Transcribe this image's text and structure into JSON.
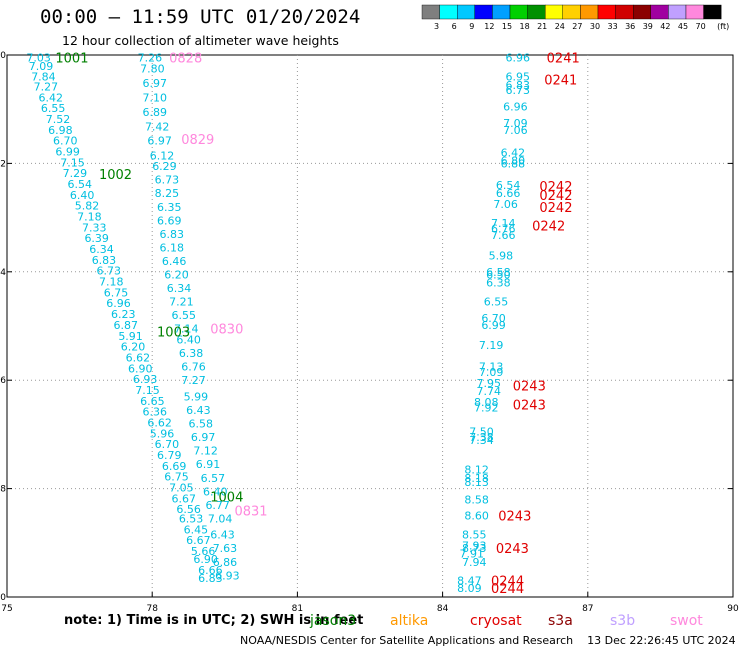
{
  "header": {
    "title": "00:00 – 11:59 UTC 01/20/2024",
    "subtitle": "12 hour collection of altimeter wave heights"
  },
  "colorbar": {
    "ticks": [
      "3",
      "6",
      "9",
      "12",
      "15",
      "18",
      "21",
      "24",
      "27",
      "30",
      "33",
      "36",
      "39",
      "42",
      "45",
      "70",
      "(ft)"
    ],
    "colors": [
      "#7f7f7f",
      "#00ffff",
      "#00c8ff",
      "#0000ff",
      "#00a0ff",
      "#00d000",
      "#009000",
      "#ffff00",
      "#ffd000",
      "#ff9900",
      "#ff0000",
      "#d00000",
      "#8b0000",
      "#a000a0",
      "#c0a0ff",
      "#ff88dd",
      "#000000"
    ]
  },
  "footer": {
    "note": "note: 1) Time is in UTC; 2) SWH is in feet",
    "credit": "NOAA/NESDIS Center for Satellite Applications and Research",
    "generated": "13 Dec 22:26:45 UTC 2024"
  },
  "satellites": [
    {
      "name": "jason3",
      "color": "#008000"
    },
    {
      "name": "altika",
      "color": "#ff9900"
    },
    {
      "name": "cryosat",
      "color": "#e00000"
    },
    {
      "name": "s3a",
      "color": "#8b0000"
    },
    {
      "name": "s3b",
      "color": "#c0a0ff"
    },
    {
      "name": "swot",
      "color": "#ff88dd"
    }
  ],
  "chart_data": {
    "type": "scatter",
    "xlim": [
      75,
      90
    ],
    "ylim": [
      -20,
      -10
    ],
    "x_ticks": [
      75,
      78,
      81,
      84,
      87,
      90
    ],
    "y_ticks": [
      -10,
      -12,
      -14,
      -16,
      -18,
      -20
    ],
    "x_tick_labels": [
      "75",
      "78",
      "81",
      "84",
      "87",
      "90"
    ],
    "y_tick_labels": [
      "10",
      "12",
      "14",
      "16",
      "18",
      "20"
    ],
    "value_color": "#00bfe0",
    "track1": [
      [
        75.4,
        -10.05,
        "7.03"
      ],
      [
        75.45,
        -10.2,
        "7.09"
      ],
      [
        75.5,
        -10.4,
        "7.84"
      ],
      [
        75.55,
        -10.58,
        "7.27"
      ],
      [
        75.65,
        -10.78,
        "6.42"
      ],
      [
        75.7,
        -10.98,
        "6.55"
      ],
      [
        75.8,
        -11.18,
        "7.52"
      ],
      [
        75.85,
        -11.38,
        "6.98"
      ],
      [
        75.95,
        -11.58,
        "6.70"
      ],
      [
        76.0,
        -11.78,
        "6.99"
      ],
      [
        76.1,
        -11.98,
        "7.15"
      ],
      [
        76.15,
        -12.18,
        "7.29"
      ],
      [
        76.25,
        -12.38,
        "6.54"
      ],
      [
        76.3,
        -12.58,
        "6.40"
      ],
      [
        76.4,
        -12.78,
        "5.82"
      ],
      [
        76.45,
        -12.98,
        "7.18"
      ],
      [
        76.55,
        -13.18,
        "7.33"
      ],
      [
        76.6,
        -13.38,
        "6.39"
      ],
      [
        76.7,
        -13.58,
        "6.34"
      ],
      [
        76.75,
        -13.78,
        "6.83"
      ],
      [
        76.85,
        -13.98,
        "6.73"
      ],
      [
        76.9,
        -14.18,
        "7.18"
      ],
      [
        77.0,
        -14.38,
        "6.75"
      ],
      [
        77.05,
        -14.58,
        "6.96"
      ],
      [
        77.15,
        -14.78,
        "6.23"
      ],
      [
        77.2,
        -14.98,
        "6.87"
      ],
      [
        77.3,
        -15.18,
        "5.91"
      ],
      [
        77.35,
        -15.38,
        "6.20"
      ],
      [
        77.45,
        -15.58,
        "6.62"
      ],
      [
        77.5,
        -15.78,
        "6.90"
      ],
      [
        77.6,
        -15.98,
        "6.93"
      ],
      [
        77.65,
        -16.18,
        "7.15"
      ],
      [
        77.75,
        -16.38,
        "6.65"
      ],
      [
        77.8,
        -16.58,
        "6.36"
      ],
      [
        77.9,
        -16.78,
        "6.62"
      ],
      [
        77.95,
        -16.98,
        "5.96"
      ],
      [
        78.05,
        -17.18,
        "6.70"
      ],
      [
        78.1,
        -17.38,
        "6.79"
      ],
      [
        78.2,
        -17.58,
        "6.69"
      ],
      [
        78.25,
        -17.78,
        "6.75"
      ],
      [
        78.35,
        -17.98,
        "7.05"
      ],
      [
        78.4,
        -18.18,
        "6.67"
      ],
      [
        78.5,
        -18.38,
        "6.56"
      ],
      [
        78.55,
        -18.55,
        "6.53"
      ],
      [
        78.65,
        -18.75,
        "6.45"
      ],
      [
        78.7,
        -18.95,
        "6.67"
      ],
      [
        78.8,
        -19.15,
        "5.66"
      ],
      [
        78.85,
        -19.3,
        "6.90"
      ],
      [
        78.95,
        -19.5,
        "6.66"
      ],
      [
        78.95,
        -19.65,
        "6.83"
      ]
    ],
    "track2": [
      [
        77.7,
        -10.05,
        "7.26"
      ],
      [
        77.75,
        -10.25,
        "7.80"
      ],
      [
        77.8,
        -10.52,
        "6.97"
      ],
      [
        77.8,
        -10.78,
        "7.10"
      ],
      [
        77.8,
        -11.05,
        "6.89"
      ],
      [
        77.85,
        -11.32,
        "7.42"
      ],
      [
        77.9,
        -11.58,
        "6.97"
      ],
      [
        77.95,
        -11.85,
        "6.12"
      ],
      [
        78.0,
        -12.05,
        "6.29"
      ],
      [
        78.05,
        -12.3,
        "6.73"
      ],
      [
        78.05,
        -12.55,
        "8.25"
      ],
      [
        78.1,
        -12.8,
        "6.35"
      ],
      [
        78.1,
        -13.05,
        "6.69"
      ],
      [
        78.15,
        -13.3,
        "6.83"
      ],
      [
        78.15,
        -13.55,
        "6.18"
      ],
      [
        78.2,
        -13.8,
        "6.46"
      ],
      [
        78.25,
        -14.05,
        "6.20"
      ],
      [
        78.3,
        -14.3,
        "6.34"
      ],
      [
        78.35,
        -14.55,
        "7.21"
      ],
      [
        78.4,
        -14.8,
        "6.55"
      ],
      [
        78.45,
        -15.05,
        "7.14"
      ],
      [
        78.5,
        -15.25,
        "6.40"
      ],
      [
        78.55,
        -15.5,
        "6.38"
      ],
      [
        78.6,
        -15.75,
        "6.76"
      ],
      [
        78.6,
        -16.0,
        "7.27"
      ],
      [
        78.65,
        -16.3,
        "5.99"
      ],
      [
        78.7,
        -16.55,
        "6.43"
      ],
      [
        78.75,
        -16.8,
        "6.58"
      ],
      [
        78.8,
        -17.05,
        "6.97"
      ],
      [
        78.85,
        -17.3,
        "7.12"
      ],
      [
        78.9,
        -17.55,
        "6.91"
      ],
      [
        79.0,
        -17.8,
        "6.57"
      ],
      [
        79.05,
        -18.05,
        "6.40"
      ],
      [
        79.1,
        -18.3,
        "6.77"
      ],
      [
        79.15,
        -18.55,
        "7.04"
      ],
      [
        79.2,
        -18.85,
        "6.43"
      ],
      [
        79.25,
        -19.1,
        "7.63"
      ],
      [
        79.25,
        -19.35,
        "6.86"
      ],
      [
        79.3,
        -19.6,
        "6.93"
      ]
    ],
    "track3": [
      [
        85.3,
        -10.05,
        "6.96"
      ],
      [
        85.3,
        -10.4,
        "6.95"
      ],
      [
        85.3,
        -10.55,
        "6.83"
      ],
      [
        85.3,
        -10.65,
        "6.73"
      ],
      [
        85.25,
        -10.95,
        "6.96"
      ],
      [
        85.25,
        -11.25,
        "7.09"
      ],
      [
        85.25,
        -11.38,
        "7.06"
      ],
      [
        85.2,
        -11.8,
        "6.42"
      ],
      [
        85.2,
        -11.95,
        "6.80"
      ],
      [
        85.2,
        -12.0,
        "6.88"
      ],
      [
        85.1,
        -12.4,
        "6.54"
      ],
      [
        85.1,
        -12.55,
        "6.66"
      ],
      [
        85.05,
        -12.75,
        "7.06"
      ],
      [
        85.0,
        -13.1,
        "7.14"
      ],
      [
        85.0,
        -13.2,
        "6.76"
      ],
      [
        85.0,
        -13.32,
        "7.66"
      ],
      [
        84.95,
        -13.7,
        "5.98"
      ],
      [
        84.9,
        -14.0,
        "6.58"
      ],
      [
        84.9,
        -14.05,
        "6.50"
      ],
      [
        84.9,
        -14.2,
        "6.38"
      ],
      [
        84.85,
        -14.55,
        "6.55"
      ],
      [
        84.8,
        -14.85,
        "6.70"
      ],
      [
        84.8,
        -14.98,
        "6.99"
      ],
      [
        84.75,
        -15.35,
        "7.19"
      ],
      [
        84.75,
        -15.75,
        "7.13"
      ],
      [
        84.75,
        -15.85,
        "7.09"
      ],
      [
        84.7,
        -16.05,
        "7.95"
      ],
      [
        84.7,
        -16.2,
        "7.74"
      ],
      [
        84.65,
        -16.4,
        "8.08"
      ],
      [
        84.65,
        -16.5,
        "7.92"
      ],
      [
        84.55,
        -16.95,
        "7.50"
      ],
      [
        84.55,
        -17.05,
        "7.38"
      ],
      [
        84.55,
        -17.1,
        "7.34"
      ],
      [
        84.45,
        -17.65,
        "8.12"
      ],
      [
        84.45,
        -17.8,
        "8.18"
      ],
      [
        84.45,
        -17.88,
        "8.13"
      ],
      [
        84.45,
        -18.2,
        "8.58"
      ],
      [
        84.45,
        -18.5,
        "8.60"
      ],
      [
        84.4,
        -18.85,
        "8.55"
      ],
      [
        84.4,
        -19.05,
        "7.93"
      ],
      [
        84.4,
        -19.1,
        "8.73"
      ],
      [
        84.35,
        -19.2,
        "7.91"
      ],
      [
        84.4,
        -19.35,
        "7.94"
      ],
      [
        84.3,
        -19.7,
        "8.47"
      ],
      [
        84.3,
        -19.83,
        "8.09"
      ]
    ],
    "time_labels": [
      {
        "x": 76.0,
        "y": -10.05,
        "text": "1001",
        "sat": "jason3"
      },
      {
        "x": 76.9,
        "y": -12.2,
        "text": "1002",
        "sat": "jason3"
      },
      {
        "x": 78.1,
        "y": -15.1,
        "text": "1003",
        "sat": "jason3"
      },
      {
        "x": 79.2,
        "y": -18.15,
        "text": "1004",
        "sat": "jason3"
      },
      {
        "x": 78.35,
        "y": -10.05,
        "text": "0828",
        "sat": "swot"
      },
      {
        "x": 78.6,
        "y": -11.55,
        "text": "0829",
        "sat": "swot"
      },
      {
        "x": 79.2,
        "y": -15.05,
        "text": "0830",
        "sat": "swot"
      },
      {
        "x": 79.7,
        "y": -18.4,
        "text": "0831",
        "sat": "swot"
      },
      {
        "x": 86.15,
        "y": -10.05,
        "text": "0241",
        "sat": "cryosat"
      },
      {
        "x": 86.1,
        "y": -10.45,
        "text": "0241",
        "sat": "cryosat"
      },
      {
        "x": 86.0,
        "y": -12.42,
        "text": "0242",
        "sat": "cryosat"
      },
      {
        "x": 86.0,
        "y": -12.58,
        "text": "0242",
        "sat": "cryosat"
      },
      {
        "x": 86.0,
        "y": -12.8,
        "text": "0242",
        "sat": "cryosat"
      },
      {
        "x": 85.85,
        "y": -13.15,
        "text": "0242",
        "sat": "cryosat"
      },
      {
        "x": 85.45,
        "y": -16.1,
        "text": "0243",
        "sat": "cryosat"
      },
      {
        "x": 85.45,
        "y": -16.45,
        "text": "0243",
        "sat": "cryosat"
      },
      {
        "x": 85.15,
        "y": -18.5,
        "text": "0243",
        "sat": "cryosat"
      },
      {
        "x": 85.1,
        "y": -19.1,
        "text": "0243",
        "sat": "cryosat"
      },
      {
        "x": 85.0,
        "y": -19.7,
        "text": "0244",
        "sat": "cryosat"
      },
      {
        "x": 85.0,
        "y": -19.83,
        "text": "0244",
        "sat": "cryosat"
      }
    ]
  }
}
